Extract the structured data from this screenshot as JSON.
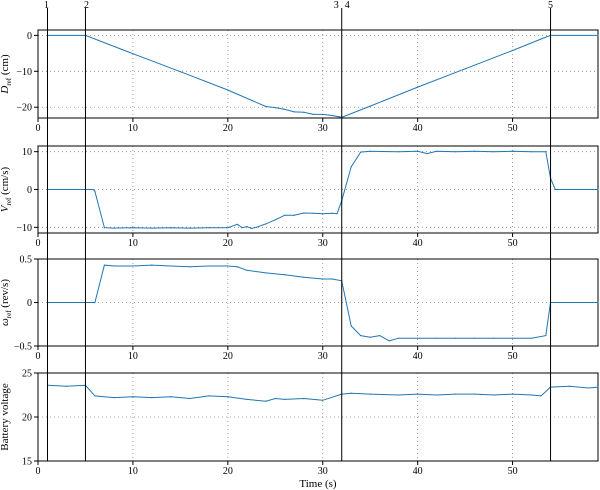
{
  "chart_data": [
    {
      "type": "line",
      "panel": "D",
      "ylabel_main": "D",
      "ylabel_sub": "ref",
      "ylabel_unit": " (cm)",
      "xlim": [
        0,
        59
      ],
      "ylim": [
        -23,
        1.5
      ],
      "yticks": [
        0,
        -10,
        -20
      ],
      "xticks": [
        0,
        10,
        20,
        30,
        40,
        50
      ],
      "grid": true,
      "series": [
        {
          "color": "#1f77b4",
          "x": [
            1,
            5,
            10,
            15,
            20,
            24,
            25,
            26,
            27,
            28,
            29,
            30,
            31,
            32,
            35,
            40,
            45,
            50,
            53,
            54,
            59
          ],
          "y": [
            0,
            0,
            -5.1,
            -10.1,
            -15.2,
            -19.8,
            -20.1,
            -20.6,
            -21.3,
            -21.4,
            -22.0,
            -22.0,
            -22.3,
            -22.8,
            -19.7,
            -14.4,
            -9.3,
            -4.2,
            -1.0,
            0,
            0
          ]
        }
      ]
    },
    {
      "type": "line",
      "panel": "V",
      "ylabel_main": "V",
      "ylabel_sub": "ref",
      "ylabel_unit": " (cm/s)",
      "xlim": [
        0,
        59
      ],
      "ylim": [
        -11.5,
        11.5
      ],
      "yticks": [
        10,
        0,
        -10
      ],
      "xticks": [
        0,
        10,
        20,
        30,
        40,
        50
      ],
      "grid": true,
      "series": [
        {
          "color": "#1f77b4",
          "x": [
            1,
            5.8,
            6.0,
            7.0,
            8,
            10,
            12,
            14,
            16,
            18,
            20,
            21,
            21.5,
            22,
            22.5,
            23,
            24,
            25,
            26,
            27,
            28,
            29,
            30,
            31,
            31.5,
            32,
            33,
            34,
            35,
            38,
            40,
            41,
            42,
            44,
            46,
            48,
            50,
            52,
            53.5,
            54,
            54.5,
            59
          ],
          "y": [
            0,
            0,
            -0.5,
            -10.1,
            -10.2,
            -10.1,
            -10.2,
            -10.1,
            -10.2,
            -10.1,
            -10.1,
            -9.2,
            -10.1,
            -9.8,
            -10.3,
            -10.0,
            -9.1,
            -8.0,
            -6.8,
            -6.8,
            -6.2,
            -6.3,
            -6.4,
            -6.3,
            -6.4,
            -3.0,
            6.0,
            9.9,
            10.1,
            10.0,
            10.1,
            9.5,
            10.1,
            10.0,
            10.1,
            10.0,
            10.1,
            10.0,
            10.0,
            3.0,
            0,
            0
          ]
        }
      ]
    },
    {
      "type": "line",
      "panel": "omega",
      "ylabel_main": "ω",
      "ylabel_sub": "ref",
      "ylabel_unit": " (rev/s)",
      "xlim": [
        0,
        59
      ],
      "ylim": [
        -0.5,
        0.5
      ],
      "yticks": [
        0.5,
        0,
        -0.5
      ],
      "xticks": [
        0,
        10,
        20,
        30,
        40,
        50
      ],
      "grid": true,
      "series": [
        {
          "color": "#1f77b4",
          "x": [
            1,
            6.0,
            7.0,
            8,
            10,
            12,
            14,
            16,
            18,
            20,
            21,
            22,
            24,
            26,
            28,
            30,
            31,
            32,
            33,
            34,
            35,
            36,
            37,
            38,
            40,
            42,
            44,
            46,
            48,
            50,
            52,
            53.5,
            54,
            59
          ],
          "y": [
            0,
            0,
            0.43,
            0.42,
            0.42,
            0.43,
            0.42,
            0.41,
            0.42,
            0.42,
            0.41,
            0.37,
            0.34,
            0.32,
            0.29,
            0.27,
            0.27,
            0.25,
            -0.27,
            -0.38,
            -0.4,
            -0.38,
            -0.44,
            -0.41,
            -0.41,
            -0.41,
            -0.41,
            -0.41,
            -0.41,
            -0.41,
            -0.41,
            -0.38,
            0,
            0
          ]
        }
      ]
    },
    {
      "type": "line",
      "panel": "battery",
      "ylabel_main": "Battery voltage",
      "ylabel_sub": "",
      "ylabel_unit": "",
      "xlabel": "Time (s)",
      "xlim": [
        0,
        59
      ],
      "ylim": [
        15,
        25
      ],
      "yticks": [
        25,
        20,
        15
      ],
      "xticks": [
        0,
        10,
        20,
        30,
        40,
        50
      ],
      "grid": true,
      "series": [
        {
          "color": "#1f77b4",
          "x": [
            1,
            3,
            5,
            6,
            8,
            10,
            12,
            14,
            16,
            18,
            20,
            22,
            24,
            25,
            26,
            28,
            30,
            32,
            33,
            35,
            38,
            40,
            42,
            44,
            46,
            48,
            50,
            52,
            53,
            54,
            56,
            58,
            59
          ],
          "y": [
            23.6,
            23.5,
            23.6,
            22.4,
            22.2,
            22.3,
            22.2,
            22.3,
            22.1,
            22.4,
            22.3,
            22.0,
            21.8,
            22.1,
            22.0,
            22.1,
            21.9,
            22.6,
            22.7,
            22.6,
            22.5,
            22.6,
            22.5,
            22.6,
            22.6,
            22.5,
            22.6,
            22.5,
            22.4,
            23.4,
            23.5,
            23.3,
            23.4
          ]
        }
      ]
    }
  ],
  "markers": [
    {
      "label": "1",
      "x": 1
    },
    {
      "label": "2",
      "x": 5
    },
    {
      "label": "3",
      "x": 32
    },
    {
      "label": "4",
      "x": 32
    },
    {
      "label": "5",
      "x": 54
    }
  ]
}
